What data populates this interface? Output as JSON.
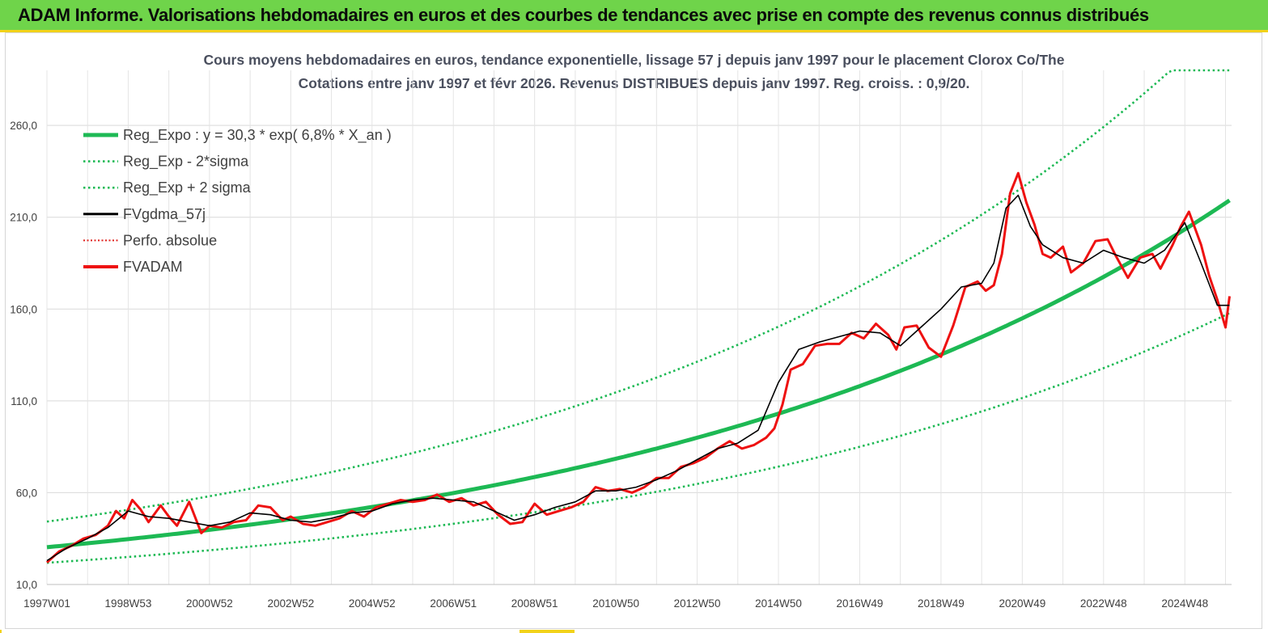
{
  "header": {
    "title": "ADAM Informe. Valorisations hebdomadaires en euros et des courbes de tendances avec prise en compte des revenus connus distribués"
  },
  "colors": {
    "header_bg": "#6fd44a",
    "accent_yellow": "#f2d21a",
    "reg_expo": "#1db954",
    "fvgdma": "#000000",
    "perfo": "#e0201c",
    "fvadam": "#ee1111"
  },
  "chart_data": {
    "type": "line",
    "title_line1": "Cours moyens hebdomadaires en euros, tendance exponentielle, lissage 57 j depuis janv 1997 pour le placement Clorox Co/The",
    "title_line2": "Cotations entre janv 1997 et févr 2026. Revenus DISTRIBUES depuis janv 1997. Reg. croiss. : 0,9/20.",
    "xlabel": "",
    "ylabel": "",
    "x_range": [
      1997.0,
      2026.15
    ],
    "ylim": [
      10,
      290
    ],
    "y_ticks": [
      10,
      60,
      110,
      160,
      210,
      260
    ],
    "y_tick_labels": [
      "10,0",
      "60,0",
      "110,0",
      "160,0",
      "210,0",
      "260,0"
    ],
    "x_ticks": [
      1997.0,
      1999.0,
      2001.0,
      2003.0,
      2005.0,
      2007.0,
      2009.0,
      2011.0,
      2013.0,
      2015.0,
      2017.0,
      2019.0,
      2021.0,
      2023.0,
      2025.0
    ],
    "x_tick_labels": [
      "1997W01",
      "1998W53",
      "2000W52",
      "2002W52",
      "2004W52",
      "2006W51",
      "2008W51",
      "2010W50",
      "2012W50",
      "2014W50",
      "2016W49",
      "2018W49",
      "2020W49",
      "2022W48",
      "2024W48"
    ],
    "grid": true,
    "legend_position": "top-left",
    "regression": {
      "a": 30.3,
      "rate": 0.068,
      "sigma_factor_upper": 1.46,
      "sigma_factor_lower": 0.72
    },
    "legend": [
      {
        "key": "reg",
        "label": "Reg_Expo : y = 30,3 * exp( 6,8% *  X_an )",
        "style": "thick-green"
      },
      {
        "key": "low",
        "label": "Reg_Exp - 2*sigma",
        "style": "dotted-green"
      },
      {
        "key": "up",
        "label": "Reg_Exp + 2 sigma",
        "style": "dotted-green"
      },
      {
        "key": "gdma",
        "label": "FVgdma_57j",
        "style": "black"
      },
      {
        "key": "perfo",
        "label": "Perfo. absolue",
        "style": "dotted-red"
      },
      {
        "key": "adam",
        "label": "FVADAM",
        "style": "thick-red"
      }
    ],
    "series": [
      {
        "name": "FVADAM",
        "x": [
          1997.0,
          1997.3,
          1997.6,
          1997.9,
          1998.2,
          1998.5,
          1998.7,
          1998.9,
          1999.1,
          1999.3,
          1999.5,
          1999.8,
          2000.0,
          2000.2,
          2000.5,
          2000.8,
          2001.0,
          2001.3,
          2001.6,
          2001.9,
          2002.2,
          2002.5,
          2002.8,
          2003.0,
          2003.3,
          2003.6,
          2003.9,
          2004.2,
          2004.5,
          2004.8,
          2005.1,
          2005.4,
          2005.7,
          2006.0,
          2006.3,
          2006.6,
          2006.9,
          2007.2,
          2007.5,
          2007.8,
          2008.1,
          2008.4,
          2008.7,
          2009.0,
          2009.3,
          2009.6,
          2009.9,
          2010.2,
          2010.5,
          2010.8,
          2011.1,
          2011.4,
          2011.7,
          2012.0,
          2012.3,
          2012.6,
          2012.9,
          2013.2,
          2013.5,
          2013.8,
          2014.1,
          2014.4,
          2014.7,
          2014.9,
          2015.1,
          2015.3,
          2015.6,
          2015.9,
          2016.2,
          2016.5,
          2016.8,
          2017.1,
          2017.4,
          2017.7,
          2017.9,
          2018.1,
          2018.4,
          2018.7,
          2019.0,
          2019.3,
          2019.6,
          2019.9,
          2020.1,
          2020.3,
          2020.5,
          2020.7,
          2020.9,
          2021.1,
          2021.3,
          2021.5,
          2021.7,
          2022.0,
          2022.2,
          2022.5,
          2022.8,
          2023.1,
          2023.3,
          2023.6,
          2023.9,
          2024.2,
          2024.4,
          2024.7,
          2024.9,
          2025.1,
          2025.4,
          2025.6,
          2025.8,
          2026.0,
          2026.1
        ],
        "values": [
          22,
          28,
          31,
          35,
          37,
          42,
          50,
          46,
          56,
          51,
          44,
          53,
          47,
          42,
          55,
          38,
          42,
          41,
          44,
          45,
          53,
          52,
          45,
          47,
          43,
          42,
          44,
          46,
          50,
          47,
          52,
          54,
          56,
          55,
          56,
          59,
          55,
          57,
          53,
          55,
          48,
          43,
          44,
          54,
          48,
          50,
          52,
          55,
          63,
          61,
          62,
          60,
          63,
          68,
          68,
          74,
          76,
          79,
          84,
          88,
          84,
          86,
          90,
          95,
          108,
          127,
          130,
          140,
          141,
          141,
          147,
          144,
          152,
          146,
          138,
          150,
          151,
          139,
          134,
          151,
          172,
          175,
          170,
          173,
          190,
          223,
          234,
          218,
          206,
          190,
          188,
          194,
          180,
          185,
          197,
          198,
          189,
          177,
          188,
          190,
          182,
          195,
          205,
          213,
          195,
          178,
          165,
          150,
          167
        ]
      },
      {
        "name": "FVgdma_57j",
        "x": [
          1997.0,
          1997.5,
          1998.0,
          1998.5,
          1999.0,
          1999.5,
          2000.0,
          2000.5,
          2001.0,
          2001.5,
          2002.0,
          2002.5,
          2003.0,
          2003.5,
          2004.0,
          2004.5,
          2005.0,
          2005.5,
          2006.0,
          2006.5,
          2007.0,
          2007.5,
          2008.0,
          2008.5,
          2009.0,
          2009.5,
          2010.0,
          2010.5,
          2011.0,
          2011.5,
          2012.0,
          2012.5,
          2013.0,
          2013.5,
          2014.0,
          2014.5,
          2015.0,
          2015.5,
          2016.0,
          2016.5,
          2017.0,
          2017.5,
          2018.0,
          2018.5,
          2019.0,
          2019.5,
          2020.0,
          2020.3,
          2020.6,
          2020.9,
          2021.2,
          2021.5,
          2022.0,
          2022.5,
          2023.0,
          2023.5,
          2024.0,
          2024.5,
          2025.0,
          2025.4,
          2025.8,
          2026.1
        ],
        "values": [
          23,
          30,
          35,
          41,
          50,
          47,
          46,
          44,
          42,
          44,
          49,
          48,
          45,
          44,
          46,
          49,
          50,
          54,
          56,
          57,
          56,
          55,
          50,
          45,
          48,
          52,
          55,
          61,
          61,
          63,
          67,
          72,
          78,
          84,
          87,
          94,
          120,
          138,
          142,
          145,
          148,
          147,
          140,
          150,
          160,
          172,
          174,
          185,
          215,
          222,
          205,
          195,
          188,
          185,
          192,
          188,
          185,
          192,
          207,
          185,
          162,
          162
        ]
      }
    ]
  }
}
